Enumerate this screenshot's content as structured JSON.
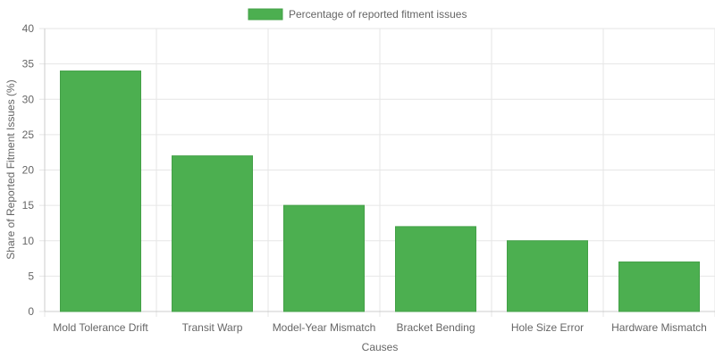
{
  "chart_data": {
    "type": "bar",
    "categories": [
      "Mold Tolerance Drift",
      "Transit Warp",
      "Model-Year Mismatch",
      "Bracket Bending",
      "Hole Size Error",
      "Hardware Mismatch"
    ],
    "series": [
      {
        "name": "Percentage of reported fitment issues",
        "values": [
          34,
          22,
          15,
          12,
          10,
          7
        ]
      }
    ],
    "xlabel": "Causes",
    "ylabel": "Share of Reported Fitment Issues (%)",
    "ylim": [
      0,
      40
    ],
    "yticks": [
      0,
      5,
      10,
      15,
      20,
      25,
      30,
      35,
      40
    ],
    "grid": true,
    "legend": "top",
    "colors": {
      "bar_fill": "#4caf50",
      "bar_stroke": "#43a047",
      "grid": "#e6e6e6",
      "text": "#666666"
    }
  }
}
